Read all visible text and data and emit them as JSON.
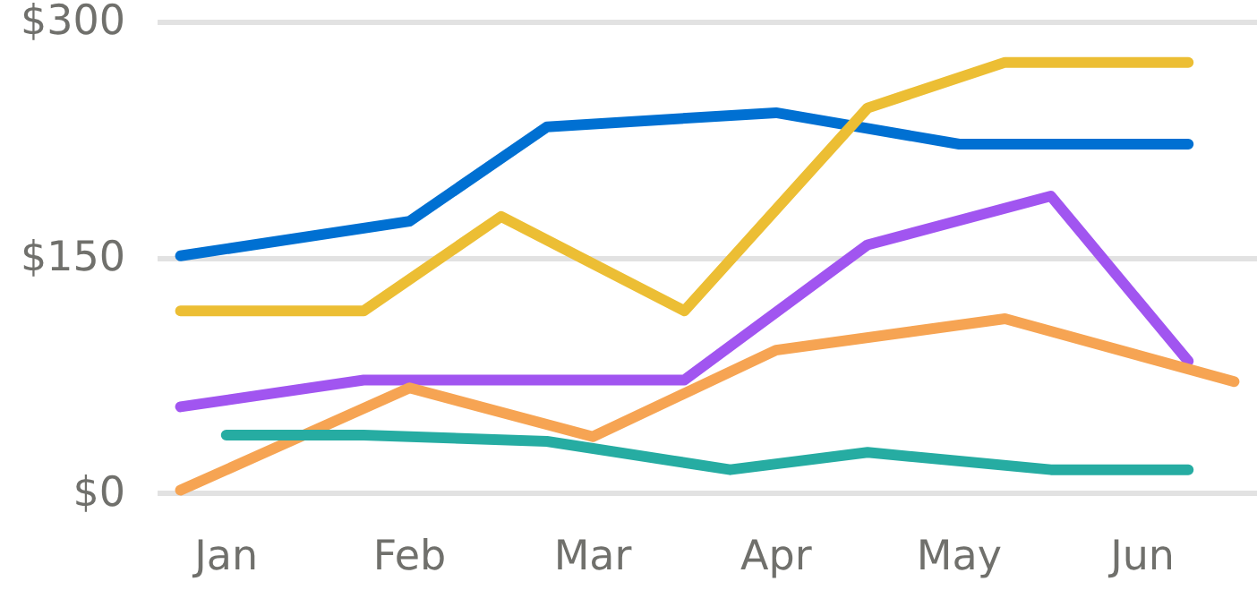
{
  "chart_data": {
    "type": "line",
    "categories": [
      null,
      "Jan",
      null,
      null,
      null,
      "Feb",
      null,
      null,
      null,
      "Mar",
      null,
      null,
      null,
      "Apr",
      null,
      null,
      null,
      "May",
      null,
      null,
      null,
      "Jun",
      null,
      null
    ],
    "ylim": [
      0,
      300
    ],
    "yticks": [
      {
        "value": 0,
        "label": "$0"
      },
      {
        "value": 150,
        "label": "$150"
      },
      {
        "value": 300,
        "label": "$300"
      }
    ],
    "grid": "y",
    "marker": "none",
    "line_style": "solid",
    "series": [
      {
        "color": "#0070d2",
        "values": [
          151,
          null,
          null,
          null,
          null,
          173,
          null,
          null,
          233,
          null,
          null,
          null,
          null,
          242,
          null,
          null,
          null,
          222,
          null,
          null,
          null,
          null,
          222,
          null
        ]
      },
      {
        "color": "#ecbe34",
        "values": [
          116,
          null,
          null,
          null,
          116,
          null,
          null,
          176,
          null,
          null,
          null,
          116,
          null,
          null,
          null,
          245,
          null,
          null,
          274,
          null,
          null,
          null,
          274,
          null
        ]
      },
      {
        "color": "#a155f0",
        "values": [
          55,
          null,
          null,
          null,
          72,
          null,
          null,
          null,
          null,
          null,
          null,
          72,
          null,
          null,
          null,
          158,
          null,
          null,
          null,
          189,
          null,
          null,
          84,
          null
        ]
      },
      {
        "color": "#f6a453",
        "values": [
          2,
          null,
          null,
          null,
          null,
          67,
          null,
          null,
          null,
          36,
          null,
          null,
          null,
          91,
          null,
          null,
          null,
          null,
          111,
          null,
          null,
          null,
          null,
          71
        ]
      },
      {
        "color": "#26aca2",
        "values": [
          null,
          37,
          null,
          null,
          37,
          null,
          null,
          null,
          33,
          null,
          null,
          null,
          15,
          null,
          null,
          26,
          null,
          null,
          null,
          15,
          null,
          null,
          15,
          null
        ]
      }
    ]
  }
}
